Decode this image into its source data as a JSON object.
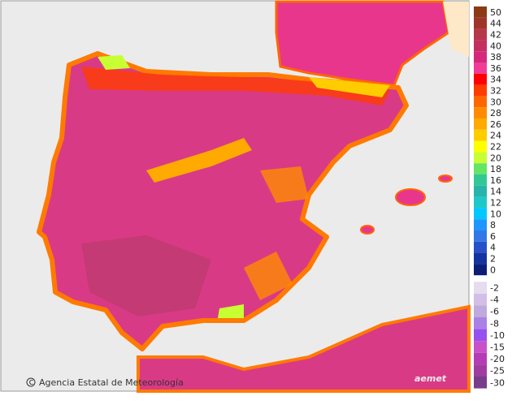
{
  "map": {
    "credit": "Agencia Estatal de Meteorología",
    "logo": "aemet"
  },
  "legend": {
    "items": [
      {
        "value": 50,
        "color": "#8b3a14"
      },
      {
        "value": 44,
        "color": "#a0342a"
      },
      {
        "value": 42,
        "color": "#b4384a"
      },
      {
        "value": 40,
        "color": "#c42f60"
      },
      {
        "value": 38,
        "color": "#d6287a"
      },
      {
        "value": 36,
        "color": "#f03c96"
      },
      {
        "value": 34,
        "color": "#ff0000"
      },
      {
        "value": 32,
        "color": "#ff3c00"
      },
      {
        "value": 30,
        "color": "#ff6600"
      },
      {
        "value": 28,
        "color": "#ff8c00"
      },
      {
        "value": 26,
        "color": "#ffaa00"
      },
      {
        "value": 24,
        "color": "#ffcc00"
      },
      {
        "value": 22,
        "color": "#ffff00"
      },
      {
        "value": 20,
        "color": "#c8ff32"
      },
      {
        "value": 18,
        "color": "#64e664"
      },
      {
        "value": 16,
        "color": "#32c896"
      },
      {
        "value": 14,
        "color": "#28b4aa"
      },
      {
        "value": 12,
        "color": "#1ec8c8"
      },
      {
        "value": 10,
        "color": "#00c8ff"
      },
      {
        "value": 8,
        "color": "#1e96ff"
      },
      {
        "value": 6,
        "color": "#3278e6"
      },
      {
        "value": 4,
        "color": "#2850c8"
      },
      {
        "value": 2,
        "color": "#1432a0"
      },
      {
        "value": 0,
        "color": "#0a1e78"
      },
      {
        "value": -2,
        "color": "#e6dcf0"
      },
      {
        "value": -4,
        "color": "#d2bee6"
      },
      {
        "value": -6,
        "color": "#beaadc"
      },
      {
        "value": -8,
        "color": "#aa82e6"
      },
      {
        "value": -10,
        "color": "#9650f0"
      },
      {
        "value": -15,
        "color": "#c850c8"
      },
      {
        "value": -20,
        "color": "#b43cb4"
      },
      {
        "value": -25,
        "color": "#a03ca0"
      },
      {
        "value": -30,
        "color": "#783c8c"
      }
    ]
  }
}
